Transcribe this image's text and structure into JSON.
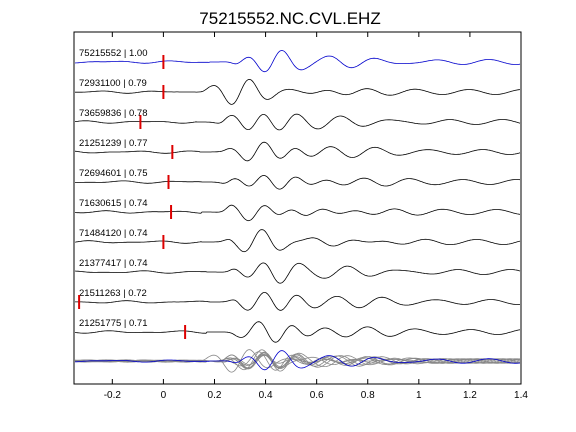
{
  "chart_data": {
    "type": "line",
    "title": "75215552.NC.CVL.EHZ",
    "xlabel": "",
    "ylabel": "",
    "xlim": [
      -0.35,
      1.4
    ],
    "x_ticks": [
      -0.2,
      0,
      0.2,
      0.4,
      0.6,
      0.8,
      1,
      1.2,
      1.4
    ],
    "x_tick_labels": [
      "-0.2",
      "0",
      "0.2",
      "0.4",
      "0.6",
      "0.8",
      "1",
      "1.2",
      "1.4"
    ],
    "grid": false,
    "colors": {
      "reference": "#0000cc",
      "trace": "#000000",
      "stack": "#888888",
      "pick": "#dd0000"
    },
    "traces": [
      {
        "id": "75215552",
        "cc": "1.00",
        "label": "75215552 | 1.00",
        "pick_time": 0.0,
        "delay": 0.3,
        "reference": true
      },
      {
        "id": "72931100",
        "cc": "0.79",
        "label": "72931100 | 0.79",
        "pick_time": 0.0,
        "delay": 0.18
      },
      {
        "id": "73659836",
        "cc": "0.78",
        "label": "73659836 | 0.78",
        "pick_time": -0.09,
        "delay": 0.25
      },
      {
        "id": "21251239",
        "cc": "0.77",
        "label": "21251239 | 0.77",
        "pick_time": 0.035,
        "delay": 0.26
      },
      {
        "id": "72694601",
        "cc": "0.75",
        "label": "72694601 | 0.75",
        "pick_time": 0.02,
        "delay": 0.27
      },
      {
        "id": "71630615",
        "cc": "0.74",
        "label": "71630615 | 0.74",
        "pick_time": 0.03,
        "delay": 0.27
      },
      {
        "id": "71484120",
        "cc": "0.74",
        "label": "71484120 | 0.74",
        "pick_time": 0.0,
        "delay": 0.27
      },
      {
        "id": "21377417",
        "cc": "0.74",
        "label": "21377417 | 0.74",
        "pick_time": null,
        "delay": 0.29
      },
      {
        "id": "21511263",
        "cc": "0.72",
        "label": "21511263 | 0.72",
        "pick_time": -0.33,
        "delay": 0.3
      },
      {
        "id": "21251775",
        "cc": "0.71",
        "label": "21251775 | 0.71",
        "pick_time": 0.085,
        "delay": 0.29
      }
    ],
    "stack": {
      "present": true
    }
  }
}
